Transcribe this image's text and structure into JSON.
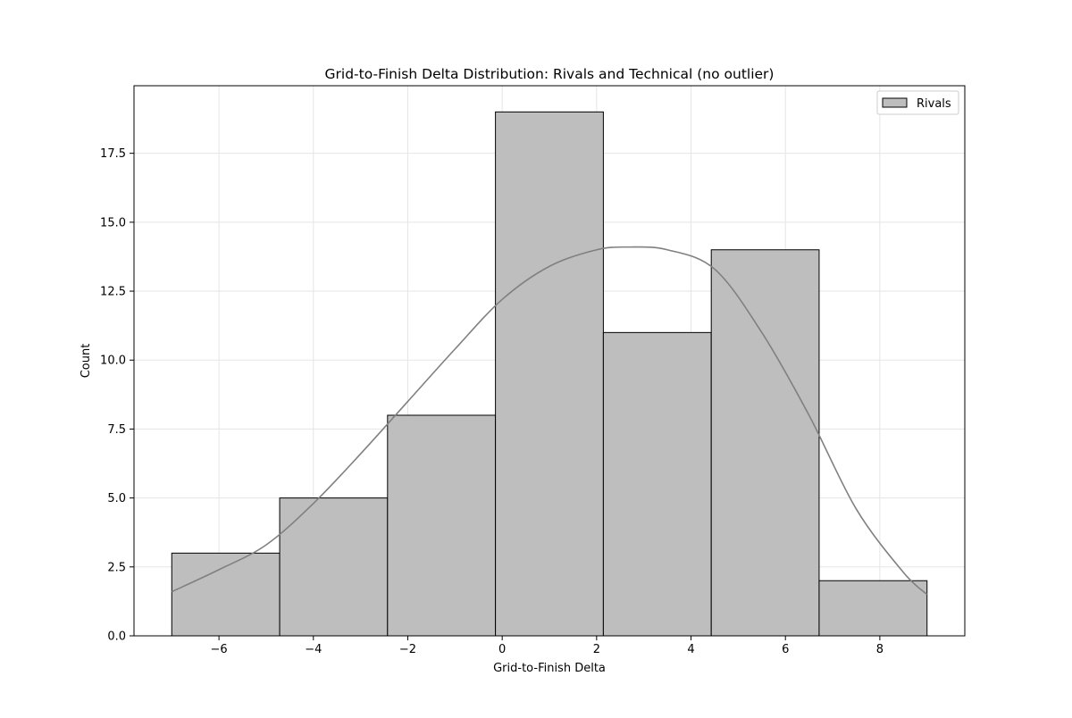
{
  "chart_data": {
    "type": "bar",
    "subtype": "histogram with kde",
    "title": "Grid-to-Finish Delta Distribution: Rivals and Technical (no outlier)",
    "xlabel": "Grid-to-Finish Delta",
    "ylabel": "Count",
    "xlim": [
      -7.8,
      9.8
    ],
    "ylim": [
      0,
      19.95
    ],
    "grid": true,
    "legend_placement": "top-right",
    "x_ticks": [
      -6,
      -4,
      -2,
      0,
      2,
      4,
      6,
      8
    ],
    "x_tick_labels": [
      "−6",
      "−4",
      "−2",
      "0",
      "2",
      "4",
      "6",
      "8"
    ],
    "y_ticks": [
      0,
      2.5,
      5,
      7.5,
      10,
      12.5,
      15,
      17.5
    ],
    "y_tick_labels": [
      "0.0",
      "2.5",
      "5.0",
      "7.5",
      "10.0",
      "12.5",
      "15.0",
      "17.5"
    ],
    "bin_edges": [
      -7.0,
      -4.714,
      -2.429,
      -0.143,
      2.143,
      4.429,
      6.714,
      9.0
    ],
    "series": [
      {
        "name": "Rivals",
        "values": [
          3,
          5,
          8,
          19,
          11,
          14,
          2
        ],
        "color": "#bebebe",
        "edge_color": "#000000",
        "kde_color": "#808080",
        "kde_x": [
          -7.0,
          -6.0,
          -5.0,
          -4.0,
          -3.0,
          -2.0,
          -1.0,
          0.0,
          1.0,
          2.0,
          2.7,
          3.5,
          4.5,
          5.5,
          6.5,
          7.5,
          8.5,
          9.0
        ],
        "kde_y": [
          1.6,
          2.4,
          3.3,
          4.8,
          6.6,
          8.5,
          10.4,
          12.2,
          13.4,
          14.0,
          14.1,
          14.0,
          13.3,
          11.0,
          8.0,
          4.6,
          2.3,
          1.5
        ]
      }
    ]
  },
  "colors": {
    "background": "#ffffff",
    "grid": "#e5e5e5",
    "axis": "#000000"
  }
}
